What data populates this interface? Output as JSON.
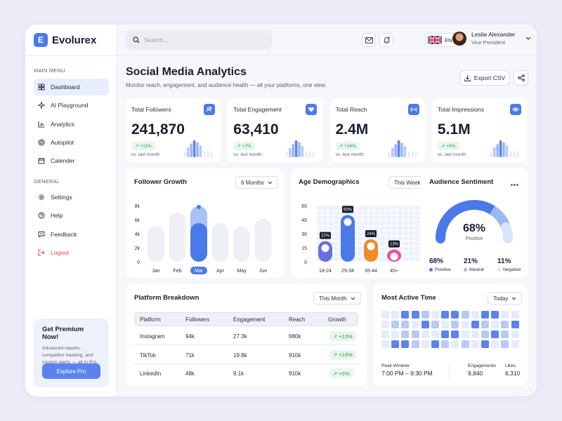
{
  "brand": {
    "name": "Evolurex",
    "logo_letter": "E"
  },
  "sidebar": {
    "main_menu_label": "MAIN MENU",
    "general_label": "GENERAL",
    "main_items": [
      {
        "label": "Dashboard",
        "icon": "dashboard-icon",
        "active": true
      },
      {
        "label": "AI Playground",
        "icon": "sparkle-icon"
      },
      {
        "label": "Analytics",
        "icon": "analytics-icon"
      },
      {
        "label": "Autopilot",
        "icon": "target-icon"
      },
      {
        "label": "Calender",
        "icon": "calendar-icon"
      }
    ],
    "general_items": [
      {
        "label": "Settings",
        "icon": "gear-icon"
      },
      {
        "label": "Help",
        "icon": "help-icon"
      },
      {
        "label": "Feedback",
        "icon": "feedback-icon"
      },
      {
        "label": "Logout",
        "icon": "logout-icon"
      }
    ],
    "premium": {
      "title": "Get Premium Now!",
      "text": "Advanced reports, competitor tracking, and custom alerts — all in Pro.",
      "button": "Explore Pro"
    }
  },
  "topbar": {
    "search_placeholder": "Search...",
    "language": "EN",
    "user_name": "Leslie Alexander",
    "user_role": "Vice President"
  },
  "header": {
    "title": "Social Media Analytics",
    "subtitle": "Monitor reach, engagement, and audience health — all your platforms, one view.",
    "export_label": "Export CSV"
  },
  "stats": [
    {
      "label": "Total Followers",
      "value": "241,870",
      "change": "+11%",
      "note": "vs. last month",
      "icon": "users-icon",
      "bars": [
        0.45,
        0.75,
        1.0,
        0.85,
        0.6
      ]
    },
    {
      "label": "Total Engagement",
      "value": "63,410",
      "change": "+7%",
      "note": "vs. last month",
      "icon": "heart-icon",
      "bars": [
        0.4,
        0.7,
        1.0,
        0.85,
        0.55
      ]
    },
    {
      "label": "Total Reach",
      "value": "2.4M",
      "change": "+14%",
      "note": "vs. last month",
      "icon": "broadcast-icon",
      "bars": [
        0.4,
        0.7,
        1.0,
        0.8,
        0.55
      ]
    },
    {
      "label": "Total Impressions",
      "value": "5.1M",
      "change": "+9%",
      "note": "vs. last month",
      "icon": "eye-icon",
      "bars": [
        0.45,
        0.7,
        1.0,
        0.85,
        0.6
      ]
    }
  ],
  "follower_growth": {
    "title": "Follower Growth",
    "period": "6 Months",
    "chart_data": {
      "type": "bar",
      "categories": [
        "Jan",
        "Feb",
        "Mar",
        "Apr",
        "May",
        "Jun"
      ],
      "values": [
        5.1,
        7.0,
        7.9,
        5.5,
        5.0,
        6.1
      ],
      "highlight_values": [
        0,
        0,
        5.5,
        0,
        0,
        0
      ],
      "y_ticks": [
        "8k",
        "6k",
        "4k",
        "2k",
        "0"
      ],
      "ylim": [
        0,
        8
      ],
      "highlight": "Mar"
    }
  },
  "age_demographics": {
    "title": "Age Demographics",
    "period": "This Week",
    "chart_data": {
      "type": "bar",
      "categories": [
        "18-24",
        "25-34",
        "35-44",
        "45+"
      ],
      "values": [
        22,
        50,
        24,
        13
      ],
      "labels": [
        "22%",
        "50%",
        "24%",
        "13%"
      ],
      "colors": [
        "#6A6FE0",
        "#4A7AE8",
        "#F08A2C",
        "#E5529B"
      ],
      "y_ticks": [
        "60",
        "45",
        "30",
        "15",
        "0"
      ],
      "ylim": [
        0,
        60
      ]
    }
  },
  "sentiment": {
    "title": "Audience Sentiment",
    "center_value": "68%",
    "center_label": "Positive",
    "chart_data": {
      "type": "pie",
      "categories": [
        "Positive",
        "Neutral",
        "Negative"
      ],
      "values": [
        68,
        21,
        11
      ],
      "labels": [
        "68%",
        "21%",
        "11%"
      ],
      "colors": [
        "#4A7AE8",
        "#9DB7F2",
        "#D9E3FA"
      ]
    }
  },
  "platforms": {
    "title": "Platform Breakdown",
    "period": "This Month",
    "columns": [
      "Platform",
      "Followers",
      "Engagement",
      "Reach",
      "Growth"
    ],
    "rows": [
      {
        "platform": "Instagram",
        "followers": "94k",
        "engagement": "27.3k",
        "reach": "680k",
        "growth": "+13%"
      },
      {
        "platform": "TikTok",
        "followers": "71k",
        "engagement": "19.8k",
        "reach": "910k",
        "growth": "+18%"
      },
      {
        "platform": "LinkedIn",
        "followers": "48k",
        "engagement": "9.1k",
        "reach": "910k",
        "growth": "+5%"
      }
    ]
  },
  "active_time": {
    "title": "Most Active Time",
    "period": "Today",
    "heatmap": [
      [
        1,
        1,
        3,
        3,
        2,
        1,
        3,
        3,
        2,
        1,
        3,
        3,
        1,
        1
      ],
      [
        1,
        2,
        2,
        1,
        3,
        2,
        1,
        2,
        1,
        3,
        2,
        1,
        2,
        3
      ],
      [
        1,
        1,
        2,
        2,
        1,
        1,
        3,
        3,
        1,
        1,
        2,
        3,
        2,
        1
      ],
      [
        1,
        3,
        3,
        2,
        1,
        3,
        2,
        1,
        2,
        1,
        3,
        1,
        2,
        1
      ]
    ],
    "colors": [
      "#E6ECFB",
      "#B8C9F4",
      "#5B83EE"
    ],
    "peak_label": "Peak Window",
    "peak_value": "7:00 PM – 9:30 PM",
    "engagements_label": "Engagements",
    "engagements_value": "9,840",
    "likes_label": "Likes",
    "likes_value": "6,310"
  }
}
